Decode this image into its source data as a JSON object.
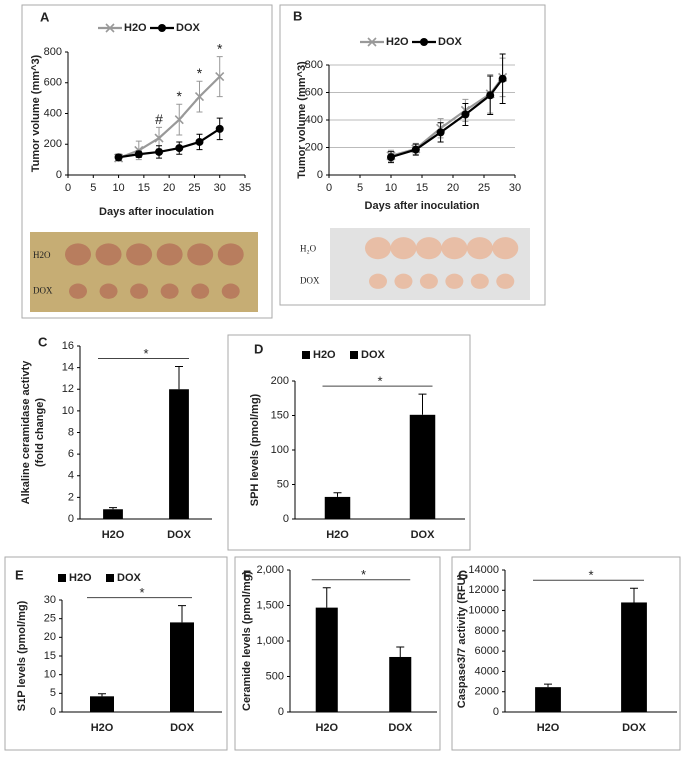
{
  "chart_data": [
    {
      "type": "line",
      "panel_label": "A",
      "xlabel": "Days after inoculation",
      "ylabel": "Tumor volume (mm^3)",
      "x": [
        10,
        14,
        18,
        22,
        26,
        30
      ],
      "series": [
        {
          "name": "H2O",
          "color": "#999999",
          "marker": "x",
          "values": [
            110,
            160,
            240,
            360,
            510,
            640
          ],
          "errors": [
            20,
            60,
            70,
            100,
            100,
            130
          ]
        },
        {
          "name": "DOX",
          "color": "#000000",
          "marker": "circle",
          "values": [
            115,
            135,
            150,
            175,
            215,
            300
          ],
          "errors": [
            20,
            20,
            40,
            40,
            50,
            70
          ]
        }
      ],
      "annotations": [
        {
          "text": "#",
          "x": 18
        },
        {
          "text": "*",
          "x": 22
        },
        {
          "text": "*",
          "x": 26
        },
        {
          "text": "*",
          "x": 30
        }
      ],
      "xlim": [
        0,
        35
      ],
      "xticks": [
        0,
        5,
        10,
        15,
        20,
        25,
        30,
        35
      ],
      "ylim": [
        0,
        800
      ],
      "yticks": [
        0,
        200,
        400,
        600,
        800
      ],
      "grid": false,
      "photo_labels": [
        "H2O",
        "DOX"
      ]
    },
    {
      "type": "line",
      "panel_label": "B",
      "xlabel": "Days after inoculation",
      "ylabel": "Tumor volume (mm^3)",
      "x": [
        10,
        14,
        18,
        22,
        26,
        28
      ],
      "series": [
        {
          "name": "H2O",
          "color": "#999999",
          "marker": "x",
          "values": [
            140,
            190,
            340,
            470,
            590,
            710
          ],
          "errors": [
            40,
            40,
            70,
            80,
            140,
            140
          ]
        },
        {
          "name": "DOX",
          "color": "#000000",
          "marker": "circle",
          "values": [
            130,
            185,
            310,
            440,
            580,
            700
          ],
          "errors": [
            40,
            40,
            70,
            80,
            140,
            180
          ]
        }
      ],
      "xlim": [
        0,
        30
      ],
      "xticks": [
        0,
        5,
        10,
        15,
        20,
        25,
        30
      ],
      "ylim": [
        0,
        800
      ],
      "yticks": [
        0,
        200,
        400,
        600,
        800
      ],
      "grid": true,
      "photo_labels": [
        "H₂O",
        "DOX"
      ]
    },
    {
      "type": "bar",
      "panel_label": "C",
      "ylabel": [
        "Alkaline ceramidase activty",
        "(fold change)"
      ],
      "categories": [
        "H2O",
        "DOX"
      ],
      "values": [
        0.9,
        12
      ],
      "errors": [
        0.15,
        2.1
      ],
      "color": "#000000",
      "annotation": "*",
      "ylim": [
        0,
        16
      ],
      "yticks": [
        0,
        2,
        4,
        6,
        8,
        10,
        12,
        14,
        16
      ]
    },
    {
      "type": "bar",
      "panel_label": "D",
      "ylabel": "SPH levels (pmol/mg)",
      "legend_labels": [
        "H2O",
        "DOX"
      ],
      "categories": [
        "H2O",
        "DOX"
      ],
      "values": [
        32,
        151
      ],
      "errors": [
        6,
        30
      ],
      "color": "#000000",
      "annotation": "*",
      "ylim": [
        0,
        200
      ],
      "yticks": [
        0,
        50,
        100,
        150,
        200
      ]
    },
    {
      "type": "bar",
      "panel_label": "E",
      "ylabel": "S1P levels (pmol/mg)",
      "legend_labels": [
        "H2O",
        "DOX"
      ],
      "categories": [
        "H2O",
        "DOX"
      ],
      "values": [
        4.2,
        24
      ],
      "errors": [
        0.7,
        4.5
      ],
      "color": "#000000",
      "annotation": "*",
      "ylim": [
        0,
        30
      ],
      "yticks": [
        0,
        5,
        10,
        15,
        20,
        25,
        30
      ]
    },
    {
      "type": "bar",
      "panel_label": "F",
      "ylabel": "Ceramide levels (pmol/mg)",
      "categories": [
        "H2O",
        "DOX"
      ],
      "values": [
        1470,
        775
      ],
      "errors": [
        280,
        140
      ],
      "color": "#000000",
      "annotation": "*",
      "ylim": [
        0,
        2000
      ],
      "yticks": [
        0,
        500,
        {
          "value": 1000,
          "label": "1,000"
        },
        {
          "value": 1500,
          "label": "1,500"
        },
        {
          "value": 2000,
          "label": "2,000"
        }
      ]
    },
    {
      "type": "bar",
      "panel_label": "G",
      "ylabel": "Caspase3/7 activity (RFU)",
      "categories": [
        "H2O",
        "DOX"
      ],
      "values": [
        2450,
        10800
      ],
      "errors": [
        300,
        1400
      ],
      "color": "#000000",
      "annotation": "*",
      "ylim": [
        0,
        14000
      ],
      "yticks": [
        0,
        2000,
        4000,
        6000,
        8000,
        10000,
        12000,
        14000
      ]
    }
  ]
}
